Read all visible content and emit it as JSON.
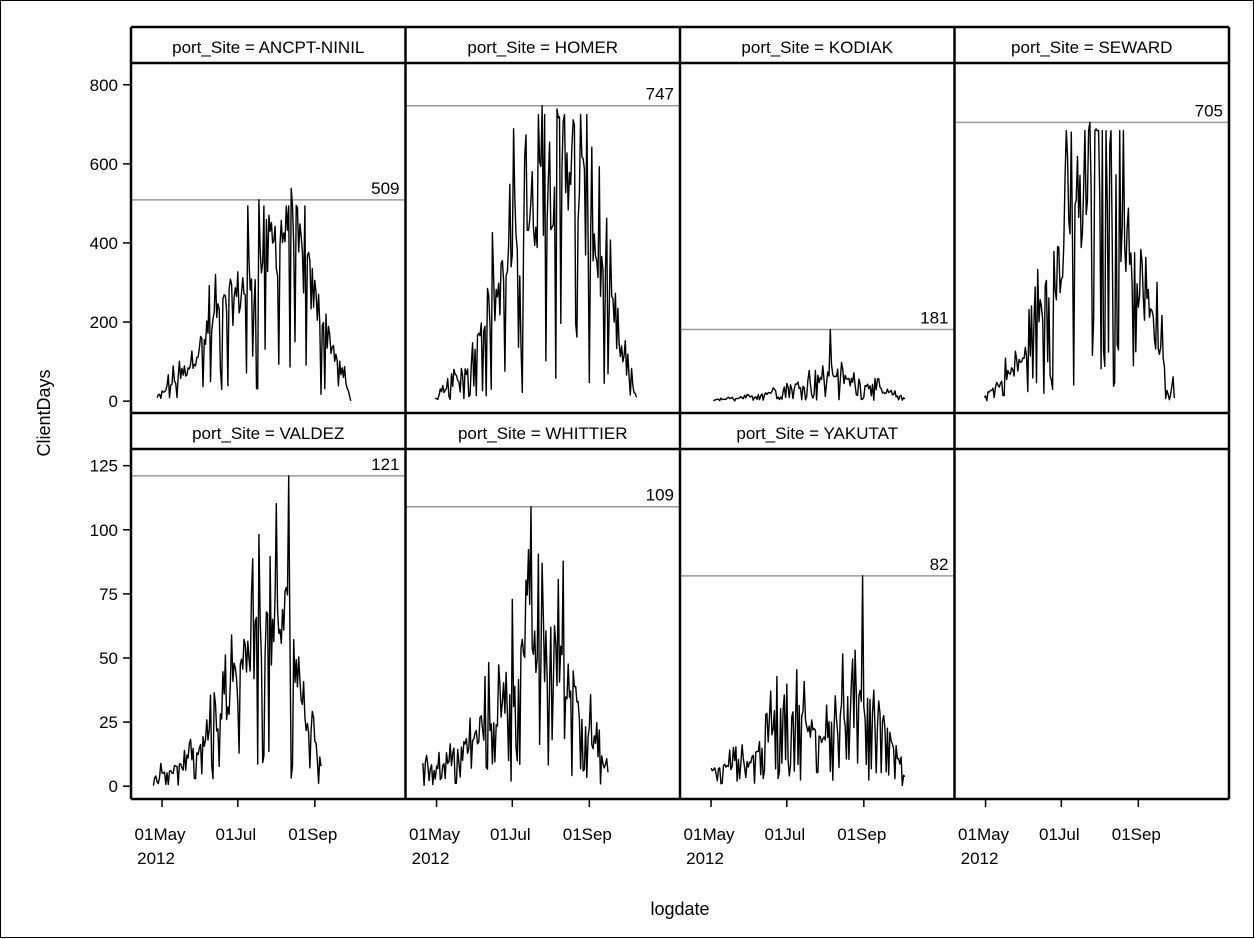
{
  "chart_data": {
    "type": "line",
    "title": "",
    "xlabel": "logdate",
    "ylabel": "ClientDays",
    "panel_label_prefix": "port_Site = ",
    "x_ticks": [
      {
        "date": "2012-05-01",
        "line1": "01May",
        "line2": "2012"
      },
      {
        "date": "2012-07-01",
        "line1": "01Jul",
        "line2": ""
      },
      {
        "date": "2012-09-01",
        "line1": "01Sep",
        "line2": ""
      }
    ],
    "xlim": [
      "2012-04-06",
      "2012-11-13"
    ],
    "grid": false,
    "layout": {
      "columns": 4,
      "rows": 2
    },
    "rows": [
      {
        "ylim": [
          -30,
          855
        ],
        "yticks": [
          0,
          200,
          400,
          600,
          800
        ]
      },
      {
        "ylim": [
          -5,
          131.5
        ],
        "yticks": [
          0,
          25,
          50,
          75,
          100,
          125
        ]
      }
    ],
    "panels": [
      {
        "site": "ANCPT-NINIL",
        "max": 509,
        "first_date": "2012-04-27",
        "last_date": "2012-09-30",
        "peak_date": "2012-07-18",
        "trend": [
          [
            0,
            10
          ],
          [
            0.15,
            80
          ],
          [
            0.3,
            200
          ],
          [
            0.5,
            320
          ],
          [
            0.68,
            460
          ],
          [
            0.82,
            250
          ],
          [
            0.92,
            120
          ],
          [
            1,
            5
          ]
        ]
      },
      {
        "site": "HOMER",
        "max": 747,
        "first_date": "2012-04-30",
        "last_date": "2012-10-09",
        "peak_date": "2012-07-25",
        "trend": [
          [
            0,
            5
          ],
          [
            0.15,
            80
          ],
          [
            0.35,
            320
          ],
          [
            0.55,
            560
          ],
          [
            0.67,
            640
          ],
          [
            0.78,
            420
          ],
          [
            0.9,
            150
          ],
          [
            1,
            10
          ]
        ]
      },
      {
        "site": "KODIAK",
        "max": 181,
        "first_date": "2012-05-03",
        "last_date": "2012-10-04",
        "peak_date": "2012-08-05",
        "trend": [
          [
            0,
            3
          ],
          [
            0.2,
            10
          ],
          [
            0.4,
            35
          ],
          [
            0.6,
            62
          ],
          [
            0.8,
            42
          ],
          [
            1,
            5
          ]
        ]
      },
      {
        "site": "SEWARD",
        "max": 705,
        "first_date": "2012-04-30",
        "last_date": "2012-09-30",
        "peak_date": "2012-07-24",
        "trend": [
          [
            0,
            10
          ],
          [
            0.2,
            100
          ],
          [
            0.4,
            350
          ],
          [
            0.58,
            580
          ],
          [
            0.7,
            500
          ],
          [
            0.85,
            250
          ],
          [
            1,
            25
          ]
        ]
      },
      {
        "site": "VALDEZ",
        "max": 121,
        "first_date": "2012-04-24",
        "last_date": "2012-09-06",
        "peak_date": "2012-08-11",
        "trend": [
          [
            0,
            4
          ],
          [
            0.2,
            8
          ],
          [
            0.4,
            30
          ],
          [
            0.6,
            55
          ],
          [
            0.8,
            65
          ],
          [
            0.9,
            30
          ],
          [
            1,
            8
          ]
        ]
      },
      {
        "site": "WHITTIER",
        "max": 109,
        "first_date": "2012-04-20",
        "last_date": "2012-09-16",
        "peak_date": "2012-07-16",
        "trend": [
          [
            0,
            6
          ],
          [
            0.2,
            12
          ],
          [
            0.4,
            30
          ],
          [
            0.6,
            55
          ],
          [
            0.75,
            50
          ],
          [
            0.9,
            20
          ],
          [
            1,
            5
          ]
        ]
      },
      {
        "site": "YAKUTAT",
        "max": 82,
        "first_date": "2012-05-01",
        "last_date": "2012-10-04",
        "peak_date": "2012-08-31",
        "trend": [
          [
            0,
            6
          ],
          [
            0.2,
            10
          ],
          [
            0.38,
            30
          ],
          [
            0.55,
            20
          ],
          [
            0.7,
            30
          ],
          [
            0.85,
            30
          ],
          [
            1,
            3
          ]
        ]
      },
      {
        "site": "",
        "max": null
      }
    ]
  }
}
